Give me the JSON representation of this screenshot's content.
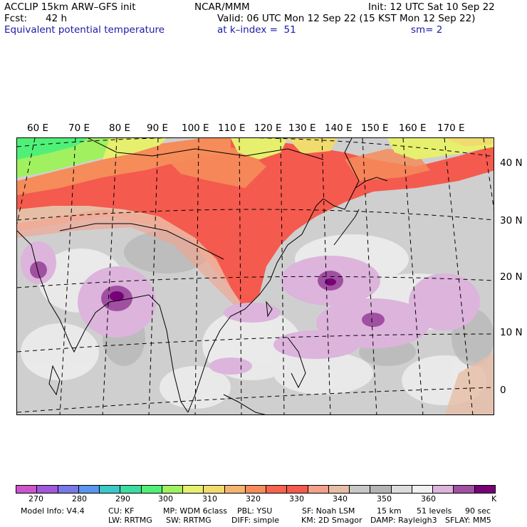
{
  "header": {
    "model": "ACCLIP 15km ARW–GFS init",
    "org": "NCAR/MMM",
    "init": "Init: 12 UTC Sat 10 Sep 22",
    "fcst_label": "Fcst:",
    "fcst_value": "42 h",
    "valid": "Valid: 06 UTC Mon 12 Sep 22 (15 KST Mon 12 Sep 22)",
    "field": "Equivalent potential temperature",
    "level": "at k–index =  51",
    "smooth": "sm= 2"
  },
  "map": {
    "lon_labels": [
      "60 E",
      "70 E",
      "80 E",
      "90 E",
      "100 E",
      "110 E",
      "120 E",
      "130 E",
      "140 E",
      "150 E",
      "160 E",
      "170 E"
    ],
    "lat_labels": [
      "40 N",
      "30 N",
      "20 N",
      "10 N",
      "0"
    ]
  },
  "colorbar": {
    "colors": [
      "#cc55cc",
      "#a058dc",
      "#7878e6",
      "#5a96ee",
      "#3cc8c8",
      "#3cdca0",
      "#50f078",
      "#a0f060",
      "#e6f06e",
      "#f0dc6e",
      "#f5b46e",
      "#f58c5a",
      "#f56450",
      "#f55a4e",
      "#f5a08c",
      "#e6bea5",
      "#c8c8c8",
      "#b4b4b4",
      "#dcdcdc",
      "#f0f0f0",
      "#dcb4dc",
      "#a050a0",
      "#780078"
    ],
    "labels": [
      "270",
      "280",
      "290",
      "300",
      "310",
      "320",
      "330",
      "340",
      "350",
      "360",
      "K"
    ]
  },
  "footer": {
    "line1": [
      "Model Info: V4.4",
      "CU: KF",
      "MP: WDM 6class",
      "PBL: YSU",
      "SF: Noah LSM",
      "15 km",
      "51 levels",
      "90 sec"
    ],
    "line2": [
      "LW: RRTMG",
      "SW: RRTMG",
      "DIFF: simple",
      "KM: 2D Smagor",
      "DAMP: Rayleigh3",
      "SFLAY: MM5"
    ]
  }
}
